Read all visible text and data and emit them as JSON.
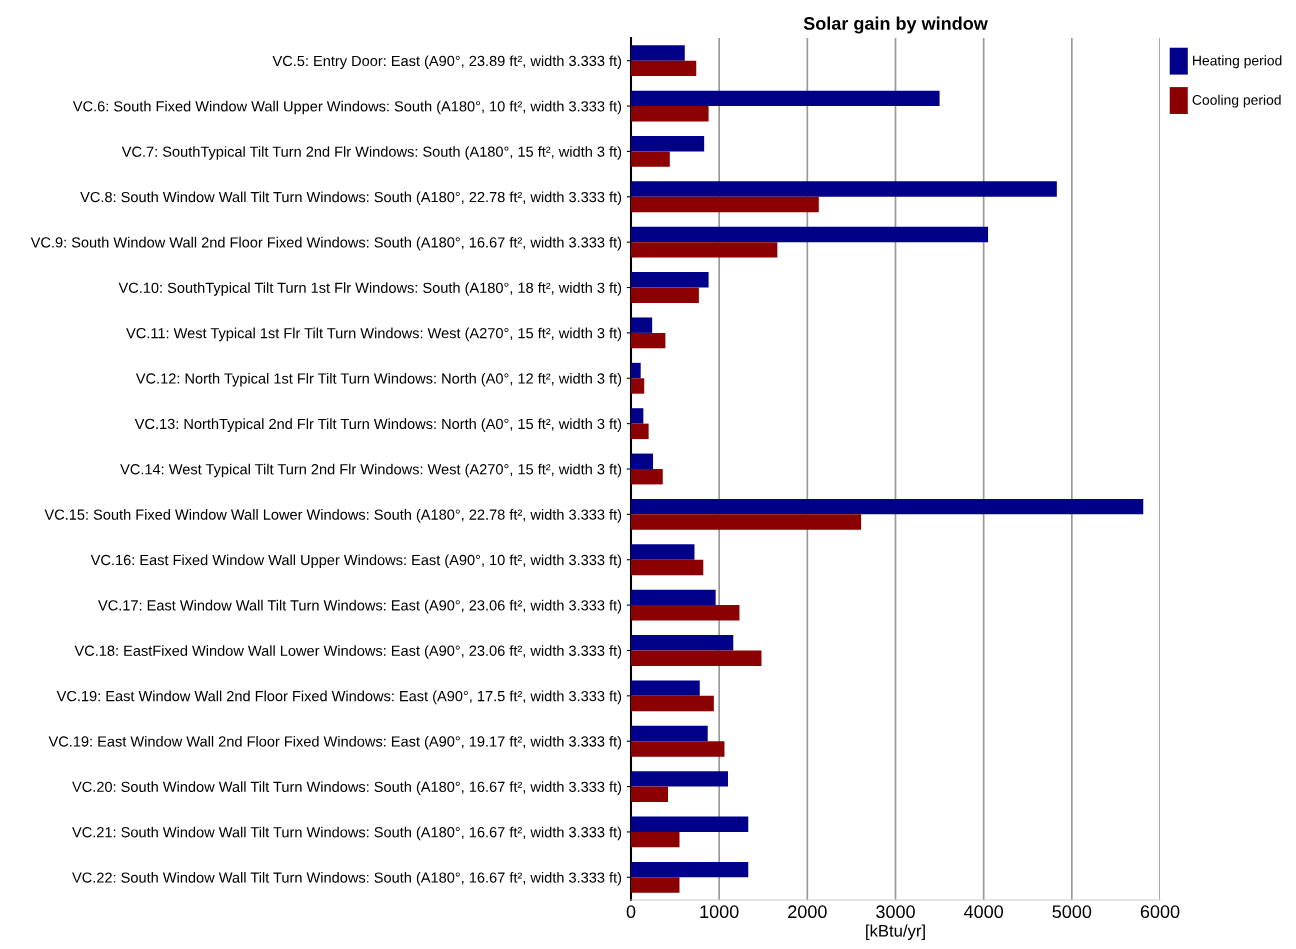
{
  "chart_data": {
    "type": "bar",
    "orientation": "horizontal",
    "title": "Solar gain by window",
    "xlabel": "[kBtu/yr]",
    "categories": [
      "VC.5: Entry Door: East (A90°, 23.89 ft², width 3.333 ft)",
      "VC.6: South Fixed Window Wall Upper Windows: South (A180°, 10 ft², width 3.333 ft)",
      "VC.7: SouthTypical Tilt Turn 2nd Flr Windows: South (A180°, 15 ft², width 3 ft)",
      "VC.8: South Window Wall Tilt Turn Windows: South (A180°, 22.78 ft², width 3.333 ft)",
      "VC.9: South Window Wall 2nd Floor Fixed Windows: South (A180°, 16.67 ft², width 3.333 ft)",
      "VC.10: SouthTypical Tilt Turn 1st Flr Windows: South (A180°, 18 ft², width 3 ft)",
      "VC.11: West Typical 1st Flr Tilt Turn Windows: West (A270°, 15 ft², width 3 ft)",
      "VC.12: North Typical 1st Flr Tilt Turn Windows: North (A0°, 12 ft², width 3 ft)",
      "VC.13: NorthTypical 2nd Flr Tilt Turn Windows: North (A0°, 15 ft², width 3 ft)",
      "VC.14: West Typical Tilt Turn 2nd Flr Windows: West (A270°, 15 ft², width 3 ft)",
      "VC.15: South Fixed Window Wall Lower Windows: South (A180°, 22.78 ft², width 3.333 ft)",
      "VC.16: East Fixed Window Wall Upper Windows: East (A90°, 10 ft², width 3.333 ft)",
      "VC.17: East Window Wall Tilt Turn Windows: East (A90°, 23.06 ft², width 3.333 ft)",
      "VC.18: EastFixed Window Wall Lower Windows: East (A90°, 23.06 ft², width 3.333 ft)",
      "VC.19: East Window Wall 2nd Floor Fixed Windows: East (A90°, 17.5 ft², width 3.333 ft)",
      "VC.19: East Window Wall 2nd Floor Fixed Windows: East (A90°, 19.17 ft², width 3.333 ft)",
      "VC.20: South Window Wall Tilt Turn Windows: South (A180°, 16.67 ft², width 3.333 ft)",
      "VC.21: South Window Wall Tilt Turn Windows: South (A180°, 16.67 ft², width 3.333 ft)",
      "VC.22: South Window Wall Tilt Turn Windows: South (A180°, 16.67 ft², width 3.333 ft)"
    ],
    "series": [
      {
        "name": "Heating period",
        "color": "#000088",
        "values": [
          610,
          3500,
          830,
          4830,
          4050,
          880,
          240,
          110,
          140,
          250,
          5810,
          720,
          960,
          1160,
          780,
          870,
          1100,
          1330,
          1330
        ]
      },
      {
        "name": "Cooling period",
        "color": "#8b0000",
        "values": [
          740,
          880,
          440,
          2130,
          1660,
          770,
          390,
          150,
          200,
          360,
          2610,
          820,
          1230,
          1480,
          940,
          1060,
          420,
          550,
          550
        ]
      }
    ],
    "xlim": [
      0,
      6000
    ],
    "xticks": [
      0,
      1000,
      2000,
      3000,
      4000,
      5000,
      6000
    ],
    "grid": "x",
    "legend": "top right"
  }
}
